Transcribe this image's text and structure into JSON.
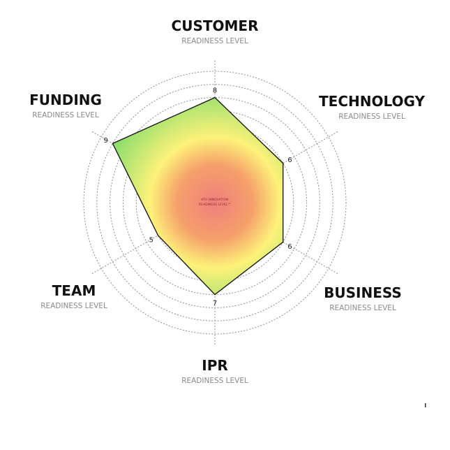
{
  "chart_data": {
    "type": "radar",
    "scale_max": 10,
    "levels": 10,
    "center_label": [
      "KTH INNOVATION",
      "READINESS LEVEL™"
    ],
    "axes": [
      {
        "name": "CUSTOMER",
        "sublabel": "READINESS LEVEL",
        "value": 8
      },
      {
        "name": "TECHNOLOGY",
        "sublabel": "READINESS LEVEL",
        "value": 6
      },
      {
        "name": "BUSINESS",
        "sublabel": "READINESS LEVEL",
        "value": 6
      },
      {
        "name": "IPR",
        "sublabel": "READINESS LEVEL",
        "value": 7
      },
      {
        "name": "TEAM",
        "sublabel": "READINESS LEVEL",
        "value": 5
      },
      {
        "name": "FUNDING",
        "sublabel": "READINESS LEVEL",
        "value": 9
      }
    ],
    "colors": {
      "center": "#ef7f7f",
      "mid": "#fdf27a",
      "outer": "#74d96a",
      "outline": "#1a1a1a",
      "grid": "#9a9a9a"
    }
  }
}
